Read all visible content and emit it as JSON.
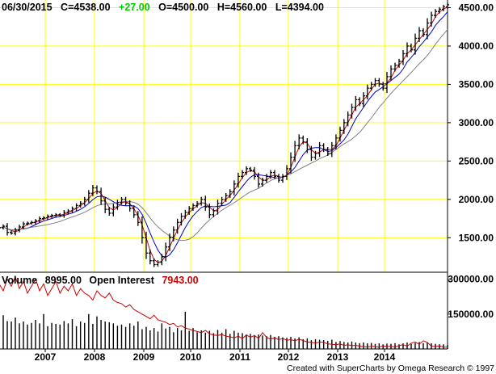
{
  "header": {
    "date": "06/30/2015",
    "close_label": "C=4538.00",
    "change_label": "+27.00",
    "open_label": "O=4500.00",
    "high_label": "H=4560.00",
    "low_label": "L=4394.00",
    "change_color": "#00cc00"
  },
  "volume_header": {
    "volume_label": "Volume",
    "volume_value": "8995.00",
    "oi_label": "Open Interest",
    "oi_value": "7943.00",
    "oi_color": "#cc0000"
  },
  "credit": "Created with SuperCharts by Omega Research © 1997",
  "colors": {
    "background": "#ffffff",
    "grid": "#ffff00",
    "price_bar": "#000000",
    "ma_short": "#cc0000",
    "ma_mid": "#0000cc",
    "ma_long": "#808080",
    "open_interest": "#cc0000",
    "volume": "#000000"
  },
  "chart_data": {
    "type": "ohlc_bar",
    "x_ticks": [
      "2007",
      "2008",
      "2009",
      "2010",
      "2011",
      "2012",
      "2013",
      "2014"
    ],
    "price_axis": {
      "ticks": [
        "1500.00",
        "2000.00",
        "2500.00",
        "3000.00",
        "3500.00",
        "4000.00",
        "4500.00"
      ],
      "values": [
        1500,
        2000,
        2500,
        3000,
        3500,
        4000,
        4500
      ],
      "range": [
        1050,
        4600
      ]
    },
    "volume_axis": {
      "ticks": [
        "150000.00",
        "300000.00"
      ],
      "values": [
        150000,
        300000
      ],
      "range": [
        0,
        330000
      ]
    },
    "grid": true,
    "monthly_closes": [
      1630,
      1650,
      1570,
      1560,
      1600,
      1640,
      1680,
      1690,
      1700,
      1720,
      1750,
      1760,
      1780,
      1790,
      1800,
      1790,
      1830,
      1850,
      1880,
      1920,
      1950,
      2000,
      2080,
      2150,
      2100,
      1980,
      1870,
      1820,
      1900,
      1960,
      2000,
      1950,
      1880,
      1800,
      1700,
      1500,
      1300,
      1200,
      1150,
      1180,
      1250,
      1380,
      1500,
      1600,
      1700,
      1780,
      1830,
      1880,
      1920,
      1950,
      2000,
      1900,
      1800,
      1850,
      1950,
      2000,
      2050,
      2100,
      2200,
      2300,
      2350,
      2400,
      2380,
      2300,
      2200,
      2250,
      2300,
      2350,
      2300,
      2250,
      2300,
      2400,
      2550,
      2700,
      2800,
      2750,
      2650,
      2550,
      2600,
      2700,
      2650,
      2600,
      2700,
      2800,
      2900,
      3000,
      3100,
      3200,
      3300,
      3250,
      3350,
      3450,
      3500,
      3550,
      3500,
      3450,
      3600,
      3700,
      3750,
      3800,
      3900,
      4000,
      3950,
      4100,
      4200,
      4150,
      4300,
      4400,
      4450,
      4480,
      4511,
      4538
    ],
    "volume_bars": [
      120000,
      145000,
      120000,
      118000,
      135000,
      110000,
      118000,
      105000,
      112000,
      125000,
      110000,
      150000,
      98000,
      112000,
      108000,
      105000,
      120000,
      110000,
      128000,
      98000,
      118000,
      112000,
      150000,
      108000,
      140000,
      125000,
      118000,
      115000,
      110000,
      100000,
      105000,
      95000,
      110000,
      100000,
      118000,
      85000,
      95000,
      80000,
      90000,
      75000,
      110000,
      88000,
      95000,
      72000,
      90000,
      80000,
      160000,
      78000,
      90000,
      72000,
      80000,
      70000,
      78000,
      68000,
      82000,
      70000,
      85000,
      65000,
      78000,
      70000,
      68000,
      62000,
      65000,
      60000,
      62000,
      58000,
      55000,
      60000,
      52000,
      55000,
      50000,
      48000,
      52000,
      45000,
      50000,
      42000,
      46000,
      38000,
      42000,
      40000,
      38000,
      35000,
      40000,
      30000,
      34000,
      30000,
      28000,
      32000,
      28000,
      25000,
      28000,
      24000,
      26000,
      22000,
      24000,
      20000,
      23000,
      22000,
      25000,
      20000,
      24000,
      28000,
      22000,
      26000,
      30000,
      25000,
      28000,
      24000,
      22000,
      20000,
      20000,
      18000
    ],
    "open_interest": [
      280000,
      250000,
      300000,
      270000,
      310000,
      260000,
      290000,
      240000,
      270000,
      300000,
      250000,
      280000,
      230000,
      260000,
      290000,
      240000,
      270000,
      250000,
      280000,
      230000,
      260000,
      240000,
      230000,
      210000,
      250000,
      230000,
      220000,
      240000,
      210000,
      200000,
      195000,
      180000,
      190000,
      170000,
      160000,
      150000,
      140000,
      130000,
      145000,
      125000,
      120000,
      115000,
      105000,
      110000,
      95000,
      100000,
      90000,
      85000,
      80000,
      75000,
      70000,
      80000,
      65000,
      60000,
      58000,
      62000,
      55000,
      52000,
      48000,
      55000,
      45000,
      60000,
      50000,
      58000,
      45000,
      70000,
      50000,
      42000,
      48000,
      40000,
      45000,
      38000,
      40000,
      35000,
      42000,
      36000,
      30000,
      28000,
      25000,
      30000,
      28000,
      22000,
      20000,
      18000,
      22000,
      15000,
      18000,
      14000,
      16000,
      12000,
      10000,
      8000,
      12000,
      10000,
      8000,
      14000,
      10000,
      12000,
      8000,
      15000,
      18000,
      12000,
      25000,
      30000,
      20000,
      35000,
      28000,
      12000,
      10000,
      14000,
      8000,
      7943
    ]
  }
}
